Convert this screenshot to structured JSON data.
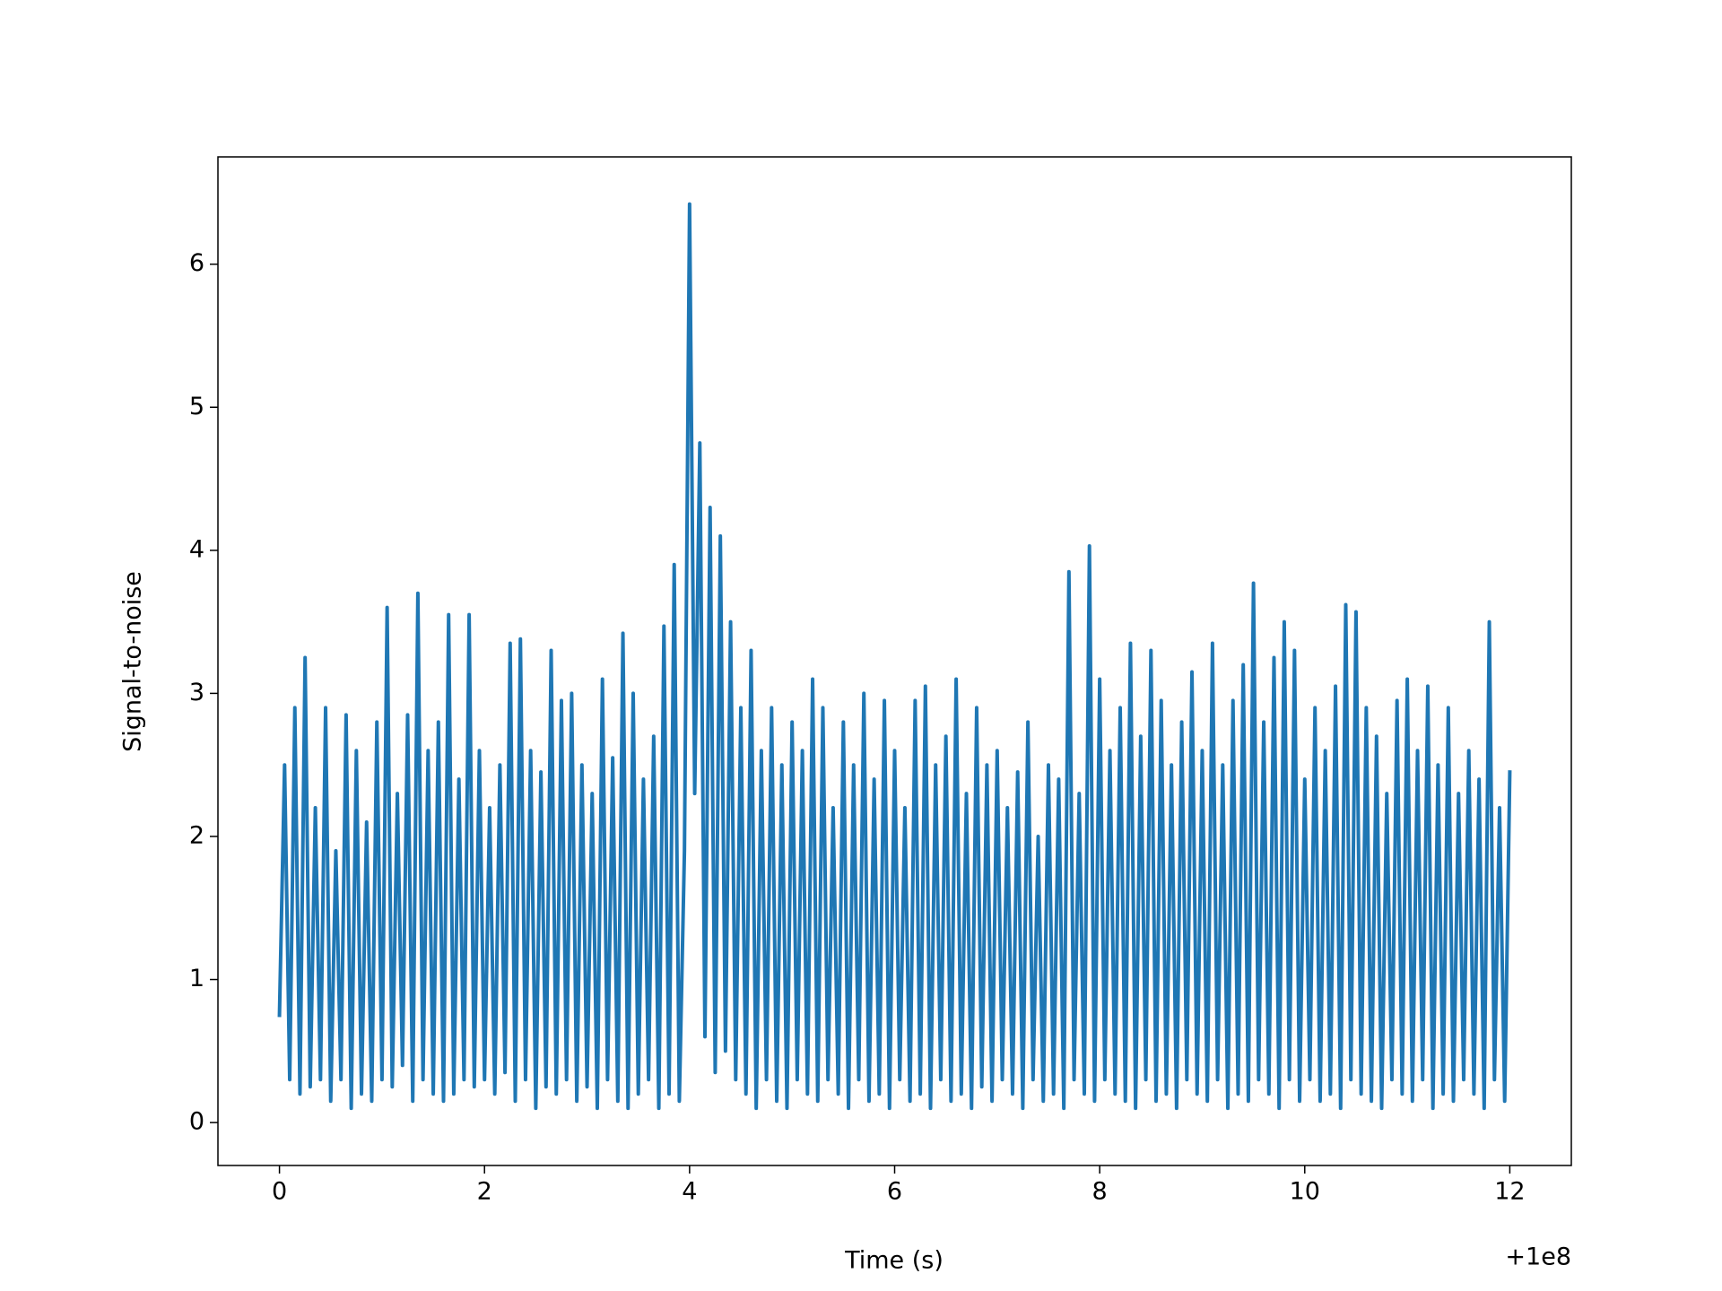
{
  "chart_data": {
    "type": "line",
    "xlabel": "Time (s)",
    "ylabel": "Signal-to-noise",
    "x_offset_label": "+1e8",
    "color": "#1f77b4",
    "grid": false,
    "xlim": [
      -0.6,
      12.6
    ],
    "ylim": [
      -0.3,
      6.75
    ],
    "xticks": [
      0,
      2,
      4,
      6,
      8,
      10,
      12
    ],
    "yticks": [
      0,
      1,
      2,
      3,
      4,
      5,
      6
    ],
    "x": [
      0,
      0.05,
      0.1,
      0.15,
      0.2,
      0.25,
      0.3,
      0.35,
      0.4,
      0.45,
      0.5,
      0.55,
      0.6,
      0.65,
      0.7,
      0.75,
      0.8,
      0.85,
      0.9,
      0.95,
      1,
      1.05,
      1.1,
      1.15,
      1.2,
      1.25,
      1.3,
      1.35,
      1.4,
      1.45,
      1.5,
      1.55,
      1.6,
      1.65,
      1.7,
      1.75,
      1.8,
      1.85,
      1.9,
      1.95,
      2,
      2.05,
      2.1,
      2.15,
      2.2,
      2.25,
      2.3,
      2.35,
      2.4,
      2.45,
      2.5,
      2.55,
      2.6,
      2.65,
      2.7,
      2.75,
      2.8,
      2.85,
      2.9,
      2.95,
      3,
      3.05,
      3.1,
      3.15,
      3.2,
      3.25,
      3.3,
      3.35,
      3.4,
      3.45,
      3.5,
      3.55,
      3.6,
      3.65,
      3.7,
      3.75,
      3.8,
      3.85,
      3.9,
      3.95,
      4,
      4.05,
      4.1,
      4.15,
      4.2,
      4.25,
      4.3,
      4.35,
      4.4,
      4.45,
      4.5,
      4.55,
      4.6,
      4.65,
      4.7,
      4.75,
      4.8,
      4.85,
      4.9,
      4.95,
      5,
      5.05,
      5.1,
      5.15,
      5.2,
      5.25,
      5.3,
      5.35,
      5.4,
      5.45,
      5.5,
      5.55,
      5.6,
      5.65,
      5.7,
      5.75,
      5.8,
      5.85,
      5.9,
      5.95,
      6,
      6.05,
      6.1,
      6.15,
      6.2,
      6.25,
      6.3,
      6.35,
      6.4,
      6.45,
      6.5,
      6.55,
      6.6,
      6.65,
      6.7,
      6.75,
      6.8,
      6.85,
      6.9,
      6.95,
      7,
      7.05,
      7.1,
      7.15,
      7.2,
      7.25,
      7.3,
      7.35,
      7.4,
      7.45,
      7.5,
      7.55,
      7.6,
      7.65,
      7.7,
      7.75,
      7.8,
      7.85,
      7.9,
      7.95,
      8,
      8.05,
      8.1,
      8.15,
      8.2,
      8.25,
      8.3,
      8.35,
      8.4,
      8.45,
      8.5,
      8.55,
      8.6,
      8.65,
      8.7,
      8.75,
      8.8,
      8.85,
      8.9,
      8.95,
      9,
      9.05,
      9.1,
      9.15,
      9.2,
      9.25,
      9.3,
      9.35,
      9.4,
      9.45,
      9.5,
      9.55,
      9.6,
      9.65,
      9.7,
      9.75,
      9.8,
      9.85,
      9.9,
      9.95,
      10,
      10.05,
      10.1,
      10.15,
      10.2,
      10.25,
      10.3,
      10.35,
      10.4,
      10.45,
      10.5,
      10.55,
      10.6,
      10.65,
      10.7,
      10.75,
      10.8,
      10.85,
      10.9,
      10.95,
      11,
      11.05,
      11.1,
      11.15,
      11.2,
      11.25,
      11.3,
      11.35,
      11.4,
      11.45,
      11.5,
      11.55,
      11.6,
      11.65,
      11.7,
      11.75,
      11.8,
      11.85,
      11.9,
      11.95,
      12
    ],
    "values": [
      0.75,
      2.5,
      0.3,
      2.9,
      0.2,
      3.25,
      0.25,
      2.2,
      0.3,
      2.9,
      0.15,
      1.9,
      0.3,
      2.85,
      0.1,
      2.6,
      0.2,
      2.1,
      0.15,
      2.8,
      0.3,
      3.6,
      0.25,
      2.3,
      0.4,
      2.85,
      0.15,
      3.7,
      0.3,
      2.6,
      0.2,
      2.8,
      0.15,
      3.55,
      0.2,
      2.4,
      0.3,
      3.55,
      0.25,
      2.6,
      0.3,
      2.2,
      0.2,
      2.5,
      0.35,
      3.35,
      0.15,
      3.38,
      0.3,
      2.6,
      0.1,
      2.45,
      0.25,
      3.3,
      0.2,
      2.95,
      0.3,
      3.0,
      0.15,
      2.5,
      0.25,
      2.3,
      0.1,
      3.1,
      0.3,
      2.55,
      0.15,
      3.42,
      0.1,
      3.0,
      0.2,
      2.4,
      0.3,
      2.7,
      0.1,
      3.47,
      0.2,
      3.9,
      0.15,
      1.9,
      6.42,
      2.3,
      4.75,
      0.6,
      4.3,
      0.35,
      4.1,
      0.5,
      3.5,
      0.3,
      2.9,
      0.2,
      3.3,
      0.1,
      2.6,
      0.3,
      2.9,
      0.15,
      2.5,
      0.1,
      2.8,
      0.3,
      2.6,
      0.2,
      3.1,
      0.15,
      2.9,
      0.3,
      2.2,
      0.2,
      2.8,
      0.1,
      2.5,
      0.3,
      3.0,
      0.15,
      2.4,
      0.2,
      2.95,
      0.1,
      2.6,
      0.3,
      2.2,
      0.15,
      2.95,
      0.2,
      3.05,
      0.1,
      2.5,
      0.3,
      2.7,
      0.15,
      3.1,
      0.2,
      2.3,
      0.1,
      2.9,
      0.25,
      2.5,
      0.15,
      2.6,
      0.3,
      2.2,
      0.2,
      2.45,
      0.1,
      2.8,
      0.3,
      2.0,
      0.15,
      2.5,
      0.2,
      2.4,
      0.1,
      3.85,
      0.3,
      2.3,
      0.2,
      4.03,
      0.15,
      3.1,
      0.3,
      2.6,
      0.2,
      2.9,
      0.15,
      3.35,
      0.1,
      2.7,
      0.3,
      3.3,
      0.15,
      2.95,
      0.2,
      2.5,
      0.1,
      2.8,
      0.3,
      3.15,
      0.2,
      2.6,
      0.15,
      3.35,
      0.3,
      2.5,
      0.1,
      2.95,
      0.2,
      3.2,
      0.15,
      3.77,
      0.3,
      2.8,
      0.2,
      3.25,
      0.1,
      3.5,
      0.3,
      3.3,
      0.15,
      2.4,
      0.3,
      2.9,
      0.15,
      2.6,
      0.2,
      3.05,
      0.1,
      3.62,
      0.3,
      3.57,
      0.2,
      2.9,
      0.15,
      2.7,
      0.1,
      2.3,
      0.3,
      2.95,
      0.2,
      3.1,
      0.15,
      2.6,
      0.3,
      3.05,
      0.1,
      2.5,
      0.2,
      2.9,
      0.15,
      2.3,
      0.3,
      2.6,
      0.2,
      2.4,
      0.1,
      3.5,
      0.3,
      2.2,
      0.15,
      2.45
    ]
  }
}
